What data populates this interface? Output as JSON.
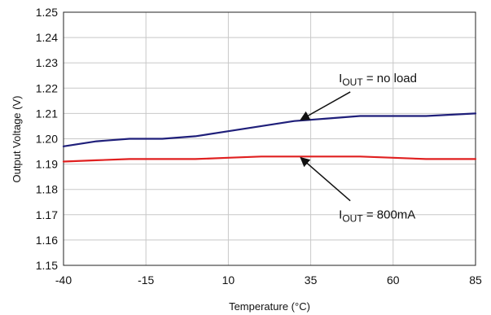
{
  "chart_data": {
    "type": "line",
    "title": "",
    "xlabel": "Temperature (°C)",
    "ylabel": "Output Voltage (V)",
    "xlim": [
      -40,
      85
    ],
    "ylim": [
      1.15,
      1.25
    ],
    "x_ticks": [
      "-40",
      "-15",
      "10",
      "35",
      "60",
      "85"
    ],
    "y_ticks": [
      "1.15",
      "1.16",
      "1.17",
      "1.18",
      "1.19",
      "1.20",
      "1.21",
      "1.22",
      "1.23",
      "1.24",
      "1.25"
    ],
    "grid": true,
    "series": [
      {
        "color": "#1f1f7a",
        "x": [
          -40,
          -30,
          -20,
          -10,
          0,
          10,
          20,
          30,
          40,
          50,
          60,
          70,
          85
        ],
        "y": [
          1.197,
          1.199,
          1.2,
          1.2,
          1.201,
          1.203,
          1.205,
          1.207,
          1.208,
          1.209,
          1.209,
          1.209,
          1.21
        ]
      },
      {
        "color": "#e02020",
        "x": [
          -40,
          -30,
          -20,
          -10,
          0,
          10,
          20,
          30,
          40,
          50,
          60,
          70,
          85
        ],
        "y": [
          1.191,
          1.1915,
          1.192,
          1.192,
          1.192,
          1.1925,
          1.193,
          1.193,
          1.193,
          1.193,
          1.1925,
          1.192,
          1.192
        ]
      }
    ],
    "annotations": [
      {
        "main": "I",
        "sub": "OUT",
        "rest": " = no load",
        "arrow_from": [
          47,
          1.2185
        ],
        "arrow_to": [
          32,
          1.2075
        ]
      },
      {
        "main": "I",
        "sub": "OUT",
        "rest": " = 800mA",
        "arrow_from": [
          47,
          1.1755
        ],
        "arrow_to": [
          32,
          1.1925
        ]
      }
    ]
  }
}
